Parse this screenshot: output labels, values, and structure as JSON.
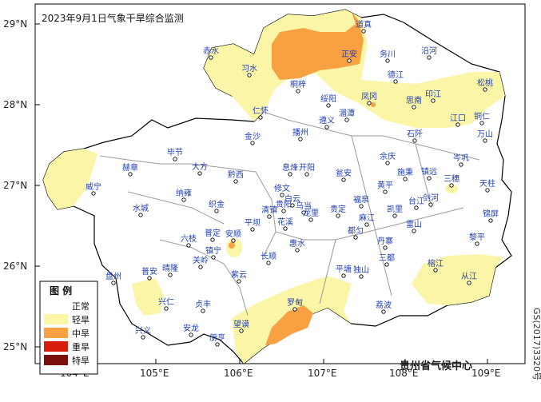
{
  "title": "2023年9月1日气象干旱综合监测",
  "agency": "贵州省气候中心",
  "map_code": "GS(2017)3320号",
  "axes": {
    "lat_ticks": [
      "29°N",
      "28°N",
      "27°N",
      "26°N",
      "25°N"
    ],
    "lon_ticks": [
      "104°E",
      "105°E",
      "106°E",
      "107°E",
      "108°E",
      "109°E"
    ]
  },
  "legend": {
    "title": "图  例",
    "items": [
      {
        "label": "正常",
        "color": "#ffffff"
      },
      {
        "label": "轻旱",
        "color": "#fbf5a8"
      },
      {
        "label": "中旱",
        "color": "#f7a142"
      },
      {
        "label": "重旱",
        "color": "#d81f0e"
      },
      {
        "label": "特旱",
        "color": "#7a0f0c"
      }
    ]
  },
  "cities": [
    "道真",
    "正安",
    "务川",
    "沿河",
    "赤水",
    "习水",
    "桐梓",
    "德江",
    "印江",
    "松桃",
    "仁怀",
    "绥阳",
    "凤冈",
    "思南",
    "湄潭",
    "江口",
    "铜仁",
    "遵义",
    "石阡",
    "万山",
    "播州",
    "毕节",
    "大方",
    "黔西",
    "金沙",
    "息烽",
    "开阳",
    "瓮安",
    "余庆",
    "施秉",
    "镇远",
    "岑巩",
    "三穗",
    "天柱",
    "赫章",
    "威宁",
    "纳雍",
    "织金",
    "修文",
    "白云",
    "乌当",
    "黄平",
    "剑河",
    "台江",
    "雷山",
    "锦屏",
    "水城",
    "六枝",
    "清镇",
    "贵阳",
    "龙里",
    "贵定",
    "福泉",
    "凯里",
    "麻江",
    "丹寨",
    "黎平",
    "普定",
    "安顺",
    "平坝",
    "花溪",
    "都匀",
    "三都",
    "榕江",
    "镇宁",
    "关岭",
    "长顺",
    "惠水",
    "从江",
    "盘州",
    "晴隆",
    "紫云",
    "平塘",
    "独山",
    "兴仁",
    "普安",
    "贞丰",
    "望谟",
    "罗甸",
    "荔波",
    "兴义",
    "安龙",
    "册亨"
  ]
}
